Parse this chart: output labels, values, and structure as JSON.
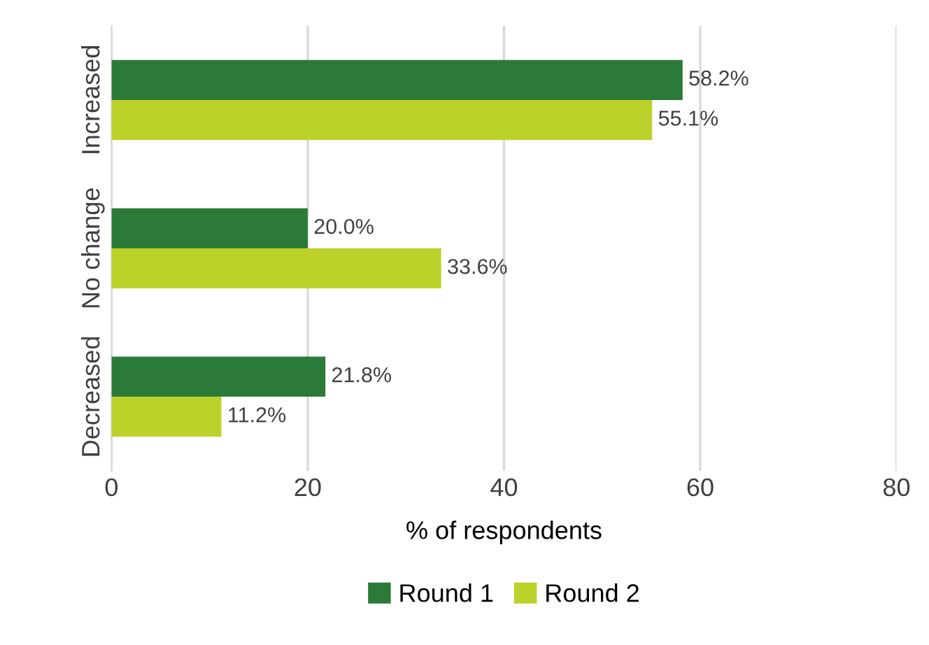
{
  "chart_data": {
    "type": "bar",
    "orientation": "horizontal",
    "xlabel": "% of respondents",
    "categories": [
      "Increased",
      "No change",
      "Decreased"
    ],
    "series": [
      {
        "name": "Round 1",
        "color": "#2b7a38",
        "values": [
          58.2,
          20.0,
          21.8
        ],
        "value_labels": [
          "58.2%",
          "20.0%",
          "21.8%"
        ]
      },
      {
        "name": "Round 2",
        "color": "#bdd12b",
        "values": [
          55.1,
          33.6,
          11.2
        ],
        "value_labels": [
          "55.1%",
          "33.6%",
          "11.2%"
        ]
      }
    ],
    "xlim": [
      0,
      80
    ],
    "xticks": [
      0,
      20,
      40,
      60,
      80
    ],
    "grid": "x",
    "legend": "bottom"
  }
}
